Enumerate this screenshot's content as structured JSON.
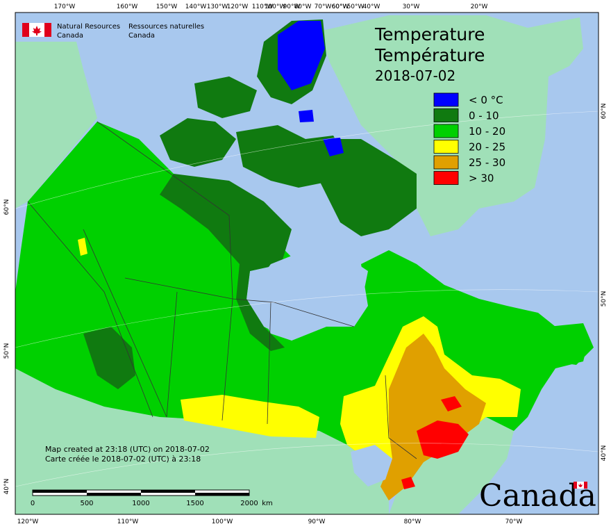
{
  "header": {
    "org_en_line1": "Natural Resources",
    "org_en_line2": "Canada",
    "org_fr_line1": "Ressources naturelles",
    "org_fr_line2": "Canada"
  },
  "title": {
    "en": "Temperature",
    "fr": "Température",
    "date": "2018-07-02"
  },
  "legend": {
    "items": [
      {
        "label": "< 0 °C",
        "color": "#0000ff"
      },
      {
        "label": "0 - 10",
        "color": "#107a10"
      },
      {
        "label": "10 - 20",
        "color": "#00d000"
      },
      {
        "label": "20 - 25",
        "color": "#ffff00"
      },
      {
        "label": "25 - 30",
        "color": "#e0a000"
      },
      {
        "label": "> 30",
        "color": "#ff0000"
      }
    ]
  },
  "notes": {
    "line_en": "Map created at 23:18 (UTC) on 2018-07-02",
    "line_fr": "Carte créée le 2018-07-02 (UTC) à 23:18"
  },
  "scale_bar": {
    "labels": [
      "0",
      "500",
      "1000",
      "1500",
      "2000",
      "km"
    ]
  },
  "axes": {
    "top_lon": [
      "170°W",
      "160°W",
      "150°W",
      "140°W",
      "130°W",
      "120°W",
      "110°W",
      "100°W",
      "90°W",
      "80°W",
      "70°W",
      "60°W",
      "50°W",
      "40°W",
      "30°W",
      "20°W"
    ],
    "bottom_lon": [
      "120°W",
      "110°W",
      "100°W",
      "90°W",
      "80°W",
      "70°W"
    ],
    "left_lat": [
      "60°N",
      "50°N",
      "40°N"
    ],
    "right_lat": [
      "60°N",
      "50°N",
      "40°N"
    ]
  },
  "wordmark": "Canada",
  "colors": {
    "water": "#a8c8ee",
    "foreign_land": "#a0e0b8",
    "border": "#333333"
  }
}
